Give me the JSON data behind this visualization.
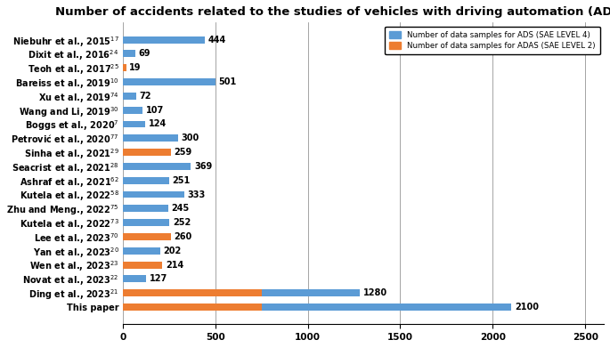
{
  "title": "Number of accidents related to the studies of vehicles with driving automation (ADS/ADAS).",
  "categories": [
    "Niebuhr et al., 2015$^{17}$",
    "Dixit et al., 2016$^{24}$",
    "Teoh et al., 2017$^{25}$",
    "Bareiss et al., 2019$^{10}$",
    "Xu et al., 2019$^{74}$",
    "Wang and Li, 2019$^{30}$",
    "Boggs et al., 2020$^{7}$",
    "Petrović et al., 2020$^{77}$",
    "Sinha et al., 2021$^{29}$",
    "Seacrist et al., 2021$^{28}$",
    "Ashraf et al., 2021$^{62}$",
    "Kutela et al., 2022$^{58}$",
    "Zhu and Meng., 2022$^{75}$",
    "Kutela et al., 2022$^{73}$",
    "Lee et al., 2023$^{70}$",
    "Yan et al., 2023$^{20}$",
    "Wen et al., 2023$^{23}$",
    "Novat et al., 2023$^{22}$",
    "Ding et al., 2023$^{21}$",
    "This paper"
  ],
  "ads_values": [
    444,
    69,
    0,
    501,
    72,
    107,
    124,
    300,
    0,
    369,
    251,
    333,
    245,
    252,
    0,
    202,
    0,
    127,
    530,
    1350
  ],
  "adas_values": [
    0,
    0,
    19,
    0,
    0,
    0,
    0,
    0,
    259,
    0,
    0,
    0,
    0,
    0,
    260,
    0,
    214,
    0,
    750,
    750
  ],
  "ads_labels": [
    444,
    69,
    0,
    501,
    72,
    107,
    124,
    300,
    0,
    369,
    251,
    333,
    245,
    252,
    0,
    202,
    0,
    127,
    1280,
    2100
  ],
  "adas_labels": [
    0,
    0,
    19,
    0,
    0,
    0,
    0,
    0,
    259,
    0,
    0,
    0,
    0,
    0,
    260,
    0,
    214,
    0,
    0,
    0
  ],
  "ads_color": "#5b9bd5",
  "adas_color": "#ed7d31",
  "legend_ads": "Number of data samples for ADS (SAE LEVEL 4)",
  "legend_adas": "Number of data samples for ADAS (SAE LEVEL 2)",
  "xlim": [
    0,
    2600
  ],
  "xticks": [
    0,
    500,
    1000,
    1500,
    2000,
    2500
  ],
  "title_fontsize": 9.5,
  "label_fontsize": 7.0,
  "tick_fontsize": 7.5,
  "value_fontsize": 7.0,
  "bar_height": 0.5,
  "figsize": [
    6.85,
    3.91
  ],
  "dpi": 100
}
